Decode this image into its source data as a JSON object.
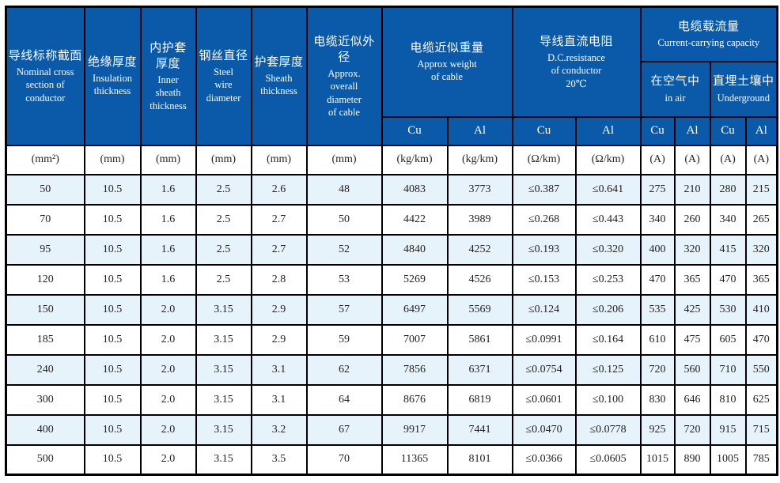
{
  "header": {
    "simple_columns": [
      {
        "zh": "导线标称截面",
        "en": "Nominal cross\nsection of\nconductor"
      },
      {
        "zh": "绝缘厚度",
        "en": "Insulation\nthickness"
      },
      {
        "zh": "内护套\n厚度",
        "en": "Inner\nsheath\nthickness"
      },
      {
        "zh": "钢丝直径",
        "en": "Steel\nwire\ndiameter"
      },
      {
        "zh": "护套厚度",
        "en": "Sheath\nthickness"
      },
      {
        "zh": "电缆近似外径",
        "en": "Approx.\noverall\ndiameter\nof cable"
      }
    ],
    "weight_group": {
      "zh": "电缆近似重量",
      "en": "Approx weight\nof cable"
    },
    "resistance_group": {
      "zh": "导线直流电阻",
      "en": "D.C.resistance\nof conductor\n20℃"
    },
    "capacity_group": {
      "zh": "电缆载流量",
      "en": "Current-carrying capacity"
    },
    "in_air": {
      "zh": "在空气中",
      "en": "in air"
    },
    "underground": {
      "zh": "直埋土壤中",
      "en": "Underground"
    },
    "metals": [
      "Cu",
      "Al",
      "Cu",
      "Al",
      "Cu",
      "Al",
      "Cu",
      "Al"
    ]
  },
  "units": [
    "(mm²)",
    "(mm)",
    "(mm)",
    "(mm)",
    "(mm)",
    "(mm)",
    "(kg/km)",
    "(kg/km)",
    "(Ω/km)",
    "(Ω/km)",
    "(A)",
    "(A)",
    "(A)",
    "(A)"
  ],
  "rows": [
    [
      "50",
      "10.5",
      "1.6",
      "2.5",
      "2.6",
      "48",
      "4083",
      "3773",
      "≤0.387",
      "≤0.641",
      "275",
      "210",
      "280",
      "215"
    ],
    [
      "70",
      "10.5",
      "1.6",
      "2.5",
      "2.7",
      "50",
      "4422",
      "3989",
      "≤0.268",
      "≤0.443",
      "340",
      "260",
      "340",
      "265"
    ],
    [
      "95",
      "10.5",
      "1.6",
      "2.5",
      "2.7",
      "52",
      "4840",
      "4252",
      "≤0.193",
      "≤0.320",
      "400",
      "320",
      "415",
      "320"
    ],
    [
      "120",
      "10.5",
      "1.6",
      "2.5",
      "2.8",
      "53",
      "5269",
      "4526",
      "≤0.153",
      "≤0.253",
      "470",
      "365",
      "470",
      "365"
    ],
    [
      "150",
      "10.5",
      "2.0",
      "3.15",
      "2.9",
      "57",
      "6497",
      "5569",
      "≤0.124",
      "≤0.206",
      "535",
      "425",
      "530",
      "410"
    ],
    [
      "185",
      "10.5",
      "2.0",
      "3.15",
      "2.9",
      "59",
      "7007",
      "5861",
      "≤0.0991",
      "≤0.164",
      "610",
      "475",
      "605",
      "470"
    ],
    [
      "240",
      "10.5",
      "2.0",
      "3.15",
      "3.1",
      "62",
      "7856",
      "6371",
      "≤0.0754",
      "≤0.125",
      "720",
      "560",
      "710",
      "550"
    ],
    [
      "300",
      "10.5",
      "2.0",
      "3.15",
      "3.1",
      "64",
      "8676",
      "6819",
      "≤0.0601",
      "≤0.100",
      "830",
      "646",
      "810",
      "625"
    ],
    [
      "400",
      "10.5",
      "2.0",
      "3.15",
      "3.2",
      "67",
      "9917",
      "7441",
      "≤0.0470",
      "≤0.0778",
      "925",
      "720",
      "915",
      "715"
    ],
    [
      "500",
      "10.5",
      "2.0",
      "3.15",
      "3.5",
      "70",
      "11365",
      "8101",
      "≤0.0366",
      "≤0.0605",
      "1015",
      "890",
      "1005",
      "785"
    ]
  ],
  "colors": {
    "header_bg": "#0b5aa9",
    "stripe_bg": "#e7f3fb",
    "border": "#000000",
    "header_text": "#ffffff",
    "body_text": "#222222"
  }
}
